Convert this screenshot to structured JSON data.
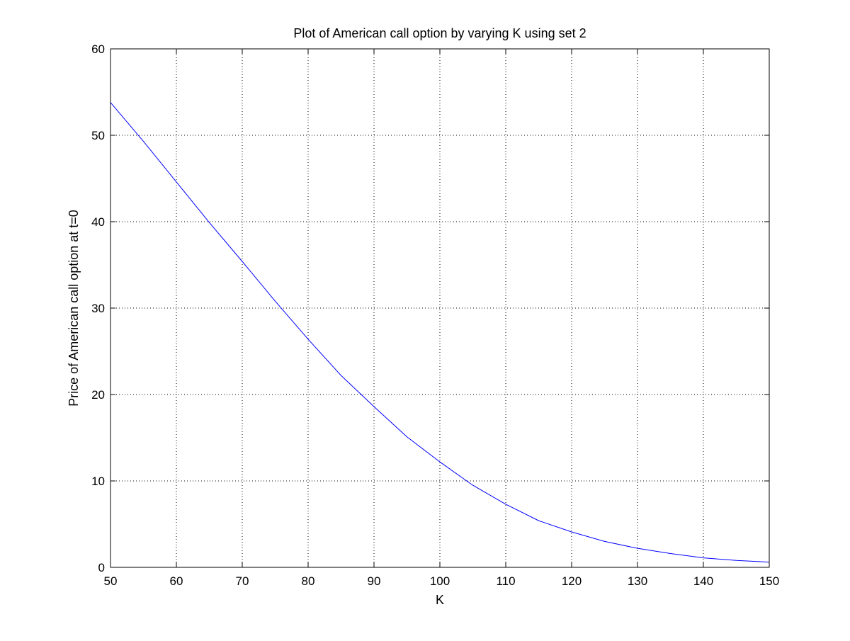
{
  "chart_data": {
    "type": "line",
    "title": "Plot of American call option by varying K using set 2",
    "xlabel": "K",
    "ylabel": "Price of American call option at t=0",
    "xlim": [
      50,
      150
    ],
    "ylim": [
      0,
      60
    ],
    "xticks": [
      "50",
      "60",
      "70",
      "80",
      "90",
      "100",
      "110",
      "120",
      "130",
      "140",
      "150"
    ],
    "yticks": [
      "0",
      "10",
      "20",
      "30",
      "40",
      "50",
      "60"
    ],
    "grid": true,
    "grid_style": "dotted",
    "line_color": "#0000ff",
    "series": [
      {
        "x": [
          50,
          55,
          60,
          65,
          70,
          75,
          80,
          85,
          90,
          95,
          100,
          105,
          110,
          115,
          120,
          125,
          130,
          135,
          140,
          145,
          150
        ],
        "y": [
          53.8,
          49.3,
          44.6,
          39.9,
          35.4,
          30.8,
          26.4,
          22.2,
          18.6,
          15.1,
          12.2,
          9.5,
          7.3,
          5.4,
          4.1,
          3.0,
          2.2,
          1.6,
          1.1,
          0.8,
          0.6
        ]
      }
    ]
  }
}
